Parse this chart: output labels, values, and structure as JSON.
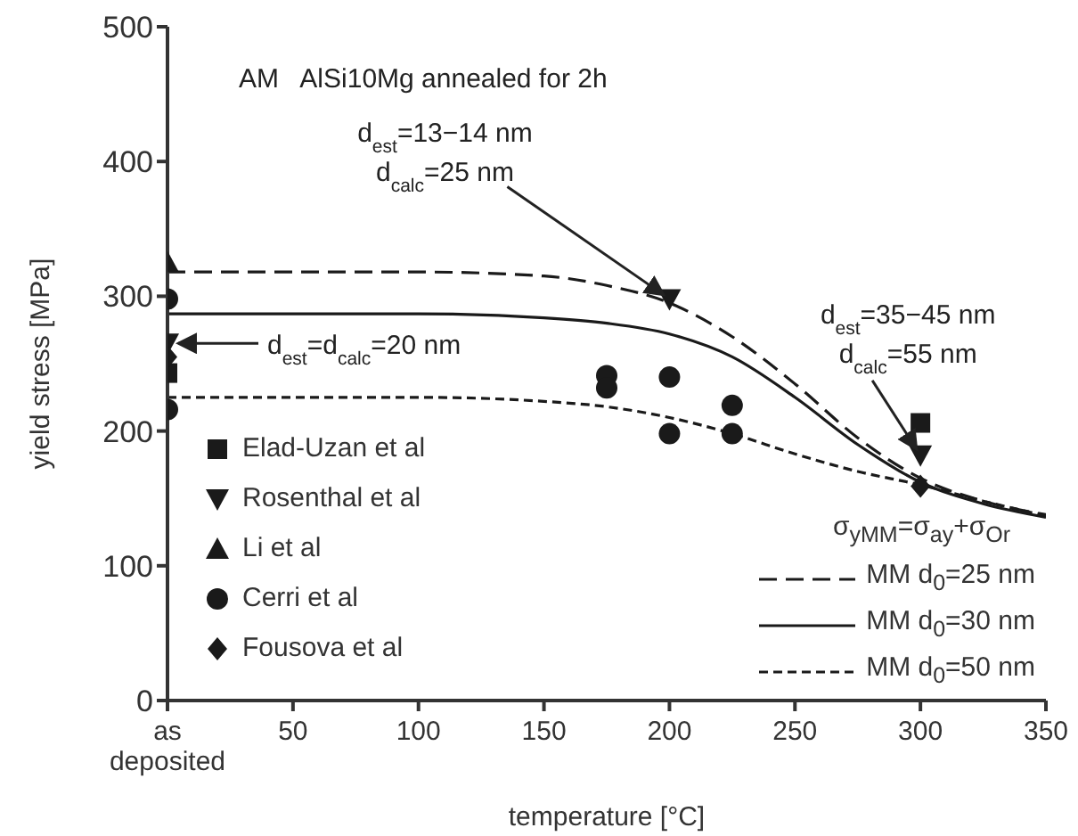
{
  "chart_data": {
    "type": "scatter",
    "xlabel": "temperature [°C]",
    "ylabel": "yield stress [MPa]",
    "xlim": [
      0,
      350
    ],
    "ylim": [
      0,
      500
    ],
    "xticks": [
      {
        "value": 0,
        "label": "as deposited"
      },
      50,
      100,
      150,
      200,
      250,
      300,
      350
    ],
    "yticks": [
      0,
      100,
      200,
      300,
      400,
      500
    ],
    "grid": false,
    "legend": "bottom",
    "legend_title": "σ$_{yMM}$=σ$_{ay}$+σ$_{Or}$",
    "series": [
      {
        "name": "Elad-Uzan et al",
        "marker": "square",
        "color": "#1a1a1a",
        "x": [
          0,
          300
        ],
        "values": [
          243,
          206
        ]
      },
      {
        "name": "Rosenthal et al",
        "marker": "triangle-down",
        "color": "#1a1a1a",
        "x": [
          0,
          200,
          300
        ],
        "values": [
          265,
          298,
          182
        ]
      },
      {
        "name": "Li et al",
        "marker": "triangle",
        "color": "#1a1a1a",
        "x": [
          0
        ],
        "values": [
          325
        ]
      },
      {
        "name": "Cerri et al",
        "marker": "circle",
        "color": "#1a1a1a",
        "x": [
          0,
          0,
          175,
          175,
          200,
          200,
          225,
          225
        ],
        "values": [
          298,
          216,
          241,
          232,
          240,
          198,
          219,
          198
        ]
      },
      {
        "name": "Fousova et al",
        "marker": "diamond",
        "color": "#1a1a1a",
        "x": [
          0,
          300
        ],
        "values": [
          255,
          159
        ]
      },
      {
        "name": "MM d$_{0}$=25 nm",
        "type": "line",
        "line_style": "dashed",
        "marker": "none",
        "color": "#1a1a1a",
        "x": [
          0,
          100,
          150,
          175,
          200,
          225,
          250,
          275,
          300,
          325,
          350
        ],
        "values": [
          318,
          318,
          315,
          308,
          295,
          270,
          235,
          195,
          165,
          148,
          138
        ]
      },
      {
        "name": "MM d$_{0}$=30 nm",
        "type": "line",
        "line_style": "solid",
        "marker": "none",
        "color": "#1a1a1a",
        "x": [
          0,
          100,
          150,
          175,
          200,
          225,
          250,
          275,
          300,
          325,
          350
        ],
        "values": [
          287,
          287,
          284,
          280,
          272,
          255,
          225,
          190,
          162,
          146,
          136
        ]
      },
      {
        "name": "MM d$_{0}$=50 nm",
        "type": "line",
        "line_style": "dotted",
        "marker": "none",
        "color": "#1a1a1a",
        "x": [
          0,
          100,
          150,
          175,
          200,
          225,
          250,
          275,
          300,
          325,
          350
        ],
        "values": [
          225,
          225,
          222,
          218,
          210,
          198,
          183,
          170,
          160,
          148,
          137
        ]
      }
    ],
    "annotations": [
      "AM   AlSi10Mg annealed for 2h",
      {
        "text": "d$_{est}$=13−14 nm\nd$_{calc}$=25 nm",
        "x": 200,
        "y": 298
      },
      "d$_{est}$=d$_{calc}$=20 nm",
      {
        "text": "d$_{est}$=35−45 nm\nd$_{calc}$=55 nm",
        "x": 300,
        "y": 182
      }
    ]
  }
}
